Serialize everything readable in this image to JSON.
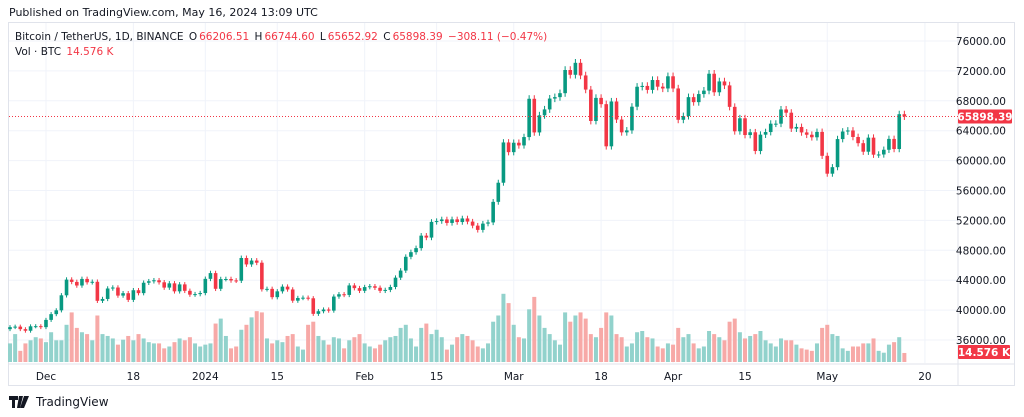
{
  "published": "Published on TradingView.com, May 16, 2024 13:09 UTC",
  "legend": {
    "symbol": "Bitcoin / TetherUS, 1D, BINANCE",
    "open_label": "O",
    "open": "66206.51",
    "high_label": "H",
    "high": "66744.60",
    "low_label": "L",
    "low": "65652.92",
    "close_label": "C",
    "close": "65898.39",
    "change": "−308.11 (−0.47%)",
    "vol_label": "Vol · BTC",
    "vol": "14.576 K"
  },
  "last_price_tag": "65898.39",
  "last_volume_tag": "14.576 K",
  "footer": {
    "brand": "TradingView"
  },
  "colors": {
    "up": "#089981",
    "down": "#f23645",
    "vol_up": "#92d2cc",
    "vol_down": "#f7a9a7"
  },
  "chart_data": {
    "type": "candlestick",
    "symbol": "BTCUSDT",
    "interval": "1D",
    "x_start": "2023-11-24",
    "x_end": "2024-05-16",
    "ylim": [
      34000,
      78000
    ],
    "y_ticks": [
      "76000.00",
      "72000.00",
      "68000.00",
      "64000.00",
      "60000.00",
      "56000.00",
      "52000.00",
      "48000.00",
      "44000.00",
      "40000.00",
      "36000.00"
    ],
    "x_ticks": [
      {
        "label": "Dec",
        "date": "2023-12-01"
      },
      {
        "label": "18",
        "date": "2023-12-18"
      },
      {
        "label": "2024",
        "date": "2024-01-01"
      },
      {
        "label": "15",
        "date": "2024-01-15"
      },
      {
        "label": "Feb",
        "date": "2024-02-01"
      },
      {
        "label": "15",
        "date": "2024-02-15"
      },
      {
        "label": "Mar",
        "date": "2024-03-01"
      },
      {
        "label": "18",
        "date": "2024-03-18"
      },
      {
        "label": "Apr",
        "date": "2024-04-01"
      },
      {
        "label": "15",
        "date": "2024-04-15"
      },
      {
        "label": "May",
        "date": "2024-05-01"
      },
      {
        "label": "20",
        "date": "2024-05-20"
      }
    ],
    "first_open": 37450,
    "close": [
      37720,
      37790,
      37450,
      37240,
      37830,
      37850,
      37720,
      38690,
      39460,
      39970,
      41980,
      44080,
      43770,
      43290,
      44170,
      43720,
      43790,
      41240,
      41490,
      42890,
      43020,
      41940,
      42260,
      41370,
      42660,
      42270,
      43660,
      43860,
      43990,
      43720,
      43010,
      43580,
      42510,
      43440,
      42580,
      42070,
      42140,
      42280,
      44180,
      44950,
      42850,
      44150,
      44160,
      43970,
      43930,
      46970,
      46110,
      46630,
      46340,
      42780,
      42840,
      41730,
      42510,
      43140,
      42760,
      41260,
      41620,
      41660,
      41580,
      39500,
      39850,
      40080,
      39930,
      41810,
      42120,
      42030,
      43300,
      42940,
      42580,
      43080,
      43190,
      42990,
      42580,
      42700,
      43090,
      44340,
      45290,
      47130,
      47750,
      48290,
      49960,
      49700,
      51800,
      51910,
      52130,
      51660,
      52140,
      51780,
      52260,
      51840,
      51300,
      50730,
      51570,
      51730,
      54480,
      57040,
      62430,
      61130,
      62390,
      62030,
      63150,
      68270,
      63770,
      66060,
      66850,
      68300,
      68490,
      69020,
      72120,
      71480,
      73080,
      71390,
      69500,
      65300,
      68390,
      67550,
      61910,
      67910,
      65490,
      63780,
      64040,
      67210,
      69880,
      69990,
      69460,
      70780,
      69890,
      69650,
      71280,
      69650,
      65460,
      65960,
      68490,
      67820,
      68900,
      69360,
      71620,
      69140,
      70590,
      70060,
      67190,
      63920,
      65660,
      63420,
      63790,
      61280,
      63470,
      63820,
      64940,
      64940,
      66840,
      66410,
      64280,
      64500,
      63770,
      63460,
      63120,
      63840,
      60640,
      58250,
      59120,
      62880,
      63890,
      64030,
      63160,
      62330,
      61190,
      63070,
      60790,
      60820,
      61450,
      62900,
      61550,
      66206.51,
      65898.39
    ],
    "volume_k": [
      30,
      45,
      18,
      30,
      35,
      40,
      38,
      32,
      48,
      35,
      35,
      60,
      80,
      55,
      48,
      45,
      35,
      75,
      45,
      42,
      38,
      28,
      36,
      42,
      35,
      45,
      38,
      32,
      30,
      30,
      22,
      25,
      32,
      38,
      35,
      40,
      30,
      25,
      28,
      30,
      62,
      70,
      42,
      22,
      25,
      52,
      60,
      72,
      82,
      80,
      38,
      30,
      35,
      32,
      42,
      45,
      25,
      20,
      60,
      65,
      42,
      35,
      28,
      40,
      38,
      22,
      35,
      40,
      45,
      30,
      25,
      22,
      28,
      35,
      40,
      42,
      55,
      60,
      38,
      25,
      55,
      62,
      45,
      52,
      40,
      20,
      28,
      40,
      45,
      42,
      35,
      25,
      22,
      30,
      65,
      75,
      110,
      95,
      60,
      40,
      38,
      85,
      105,
      75,
      55,
      45,
      35,
      28,
      80,
      65,
      75,
      80,
      70,
      45,
      40,
      55,
      80,
      75,
      45,
      40,
      25,
      30,
      48,
      50,
      40,
      38,
      25,
      22,
      30,
      28,
      55,
      40,
      45,
      30,
      22,
      25,
      50,
      45,
      40,
      35,
      65,
      70,
      48,
      38,
      42,
      45,
      50,
      35,
      30,
      25,
      38,
      35,
      35,
      28,
      22,
      20,
      18,
      30,
      55,
      60,
      45,
      42,
      22,
      18,
      25,
      25,
      30,
      30,
      38,
      18,
      15,
      28,
      32,
      40,
      14.576
    ]
  }
}
